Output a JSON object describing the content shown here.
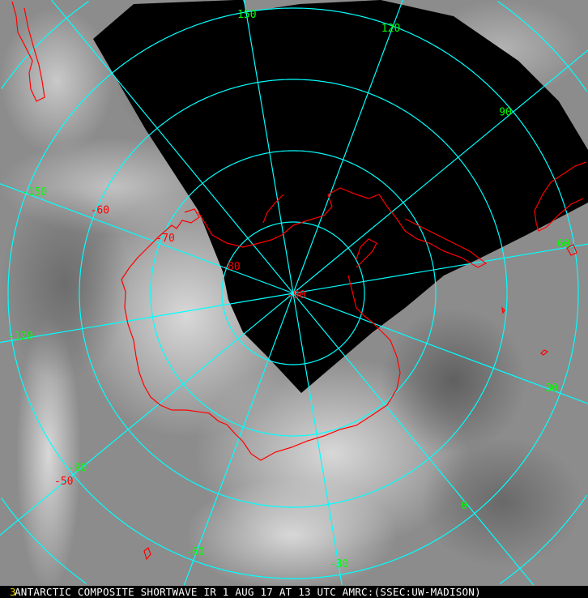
{
  "image": {
    "projection_center": "South Pole",
    "colors": {
      "grid": "#00ffff",
      "coastline": "#ff0000",
      "lon_label": "#00ff00",
      "lat_label": "#ff0000",
      "no_data": "#000000"
    },
    "longitude_labels": [
      "150",
      "120",
      "90",
      "60",
      "30",
      "0",
      "-30",
      "-60",
      "-90",
      "-120",
      "-150"
    ],
    "latitude_labels": [
      "-50",
      "-60",
      "-70",
      "-80",
      "-90"
    ]
  },
  "caption": {
    "marker": "3",
    "text": "ANTARCTIC COMPOSITE SHORTWAVE IR 1 AUG 17 AT 13 UTC AMRC:(SSEC:UW-MADISON)"
  }
}
